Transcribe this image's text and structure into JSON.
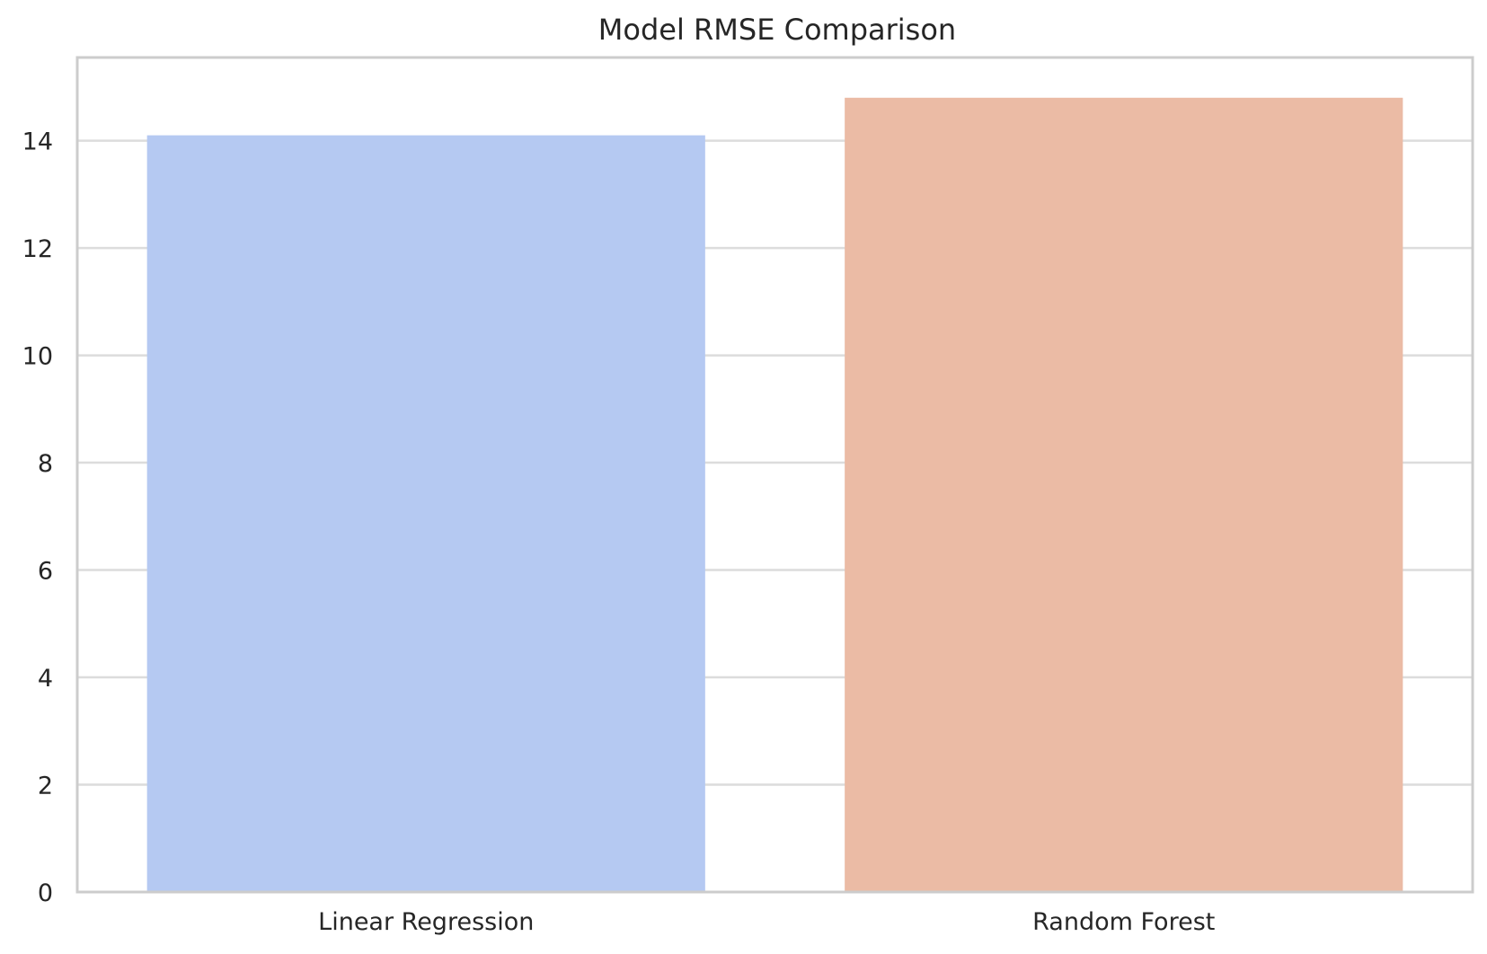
{
  "chart_data": {
    "type": "bar",
    "title": "Model RMSE Comparison",
    "xlabel": "",
    "ylabel": "",
    "categories": [
      "Linear Regression",
      "Random Forest"
    ],
    "values": [
      14.1,
      14.8
    ],
    "colors": [
      "#b5c9f2",
      "#ebbba5"
    ],
    "ylim": [
      0,
      15.55
    ],
    "yticks": [
      0,
      2,
      4,
      6,
      8,
      10,
      12,
      14
    ],
    "ytick_labels": [
      "0",
      "2",
      "4",
      "6",
      "8",
      "10",
      "12",
      "14"
    ],
    "grid": true,
    "grid_color": "#dcdcdc",
    "frame_color": "#cccccc",
    "legend": "none"
  }
}
